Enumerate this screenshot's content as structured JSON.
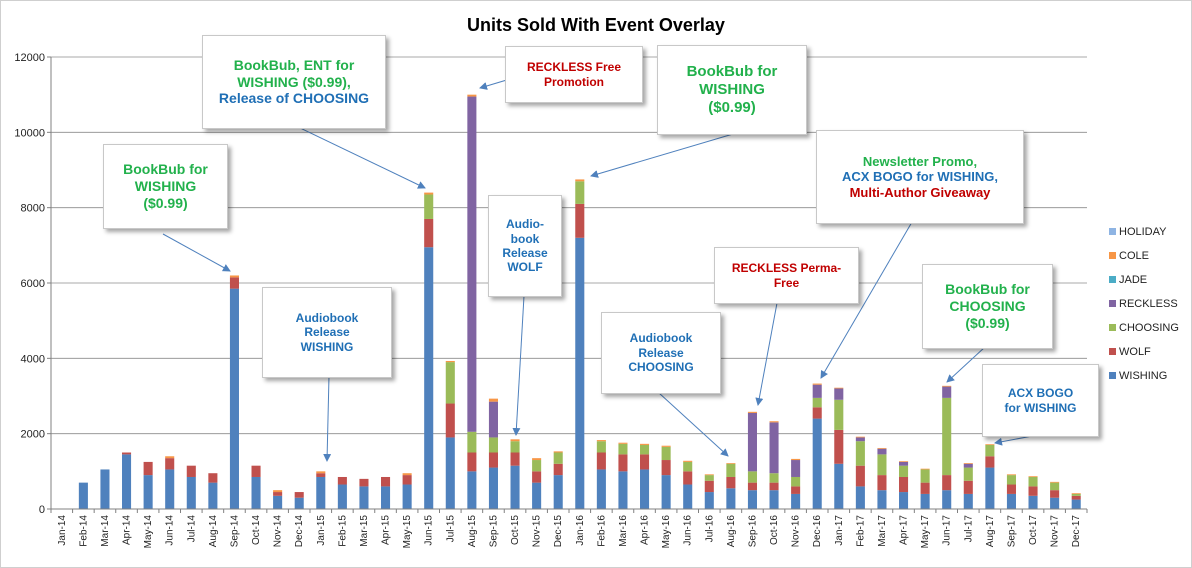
{
  "chart_data": {
    "type": "bar",
    "stacked": true,
    "title": "Units Sold With Event Overlay",
    "ylim": [
      0,
      12000
    ],
    "yticks": [
      0,
      2000,
      4000,
      6000,
      8000,
      10000,
      12000
    ],
    "grid": true,
    "legend_position": "right",
    "categories": [
      "Jan-14",
      "Feb-14",
      "Mar-14",
      "Apr-14",
      "May-14",
      "Jun-14",
      "Jul-14",
      "Aug-14",
      "Sep-14",
      "Oct-14",
      "Nov-14",
      "Dec-14",
      "Jan-15",
      "Feb-15",
      "Mar-15",
      "Apr-15",
      "May-15",
      "Jun-15",
      "Jul-15",
      "Aug-15",
      "Sep-15",
      "Oct-15",
      "Nov-15",
      "Dec-15",
      "Jan-16",
      "Feb-16",
      "Mar-16",
      "Apr-16",
      "May-16",
      "Jun-16",
      "Jul-16",
      "Aug-16",
      "Sep-16",
      "Oct-16",
      "Nov-16",
      "Dec-16",
      "Jan-17",
      "Feb-17",
      "Mar-17",
      "Apr-17",
      "May-17",
      "Jun-17",
      "Jul-17",
      "Aug-17",
      "Sep-17",
      "Oct-17",
      "Nov-17",
      "Dec-17"
    ],
    "series": [
      {
        "name": "WISHING",
        "color": "#4f81bd",
        "values": [
          0,
          700,
          1050,
          1450,
          900,
          1050,
          850,
          700,
          5850,
          850,
          350,
          300,
          850,
          650,
          600,
          600,
          650,
          6950,
          1900,
          1000,
          1100,
          1150,
          700,
          900,
          7200,
          1050,
          1000,
          1050,
          900,
          650,
          450,
          550,
          500,
          500,
          400,
          2400,
          1200,
          600,
          500,
          450,
          400,
          500,
          400,
          1100,
          400,
          350,
          300,
          250
        ]
      },
      {
        "name": "WOLF",
        "color": "#c0504d",
        "values": [
          0,
          0,
          0,
          50,
          350,
          300,
          300,
          250,
          300,
          300,
          100,
          150,
          100,
          200,
          200,
          250,
          250,
          750,
          900,
          500,
          400,
          350,
          300,
          300,
          900,
          450,
          450,
          400,
          400,
          350,
          300,
          300,
          200,
          200,
          200,
          300,
          900,
          550,
          400,
          400,
          300,
          400,
          350,
          300,
          250,
          250,
          200,
          100
        ]
      },
      {
        "name": "CHOOSING",
        "color": "#9bbb59",
        "values": [
          0,
          0,
          0,
          0,
          0,
          0,
          0,
          0,
          0,
          0,
          0,
          0,
          0,
          0,
          0,
          0,
          0,
          650,
          1100,
          550,
          400,
          300,
          300,
          300,
          600,
          300,
          280,
          250,
          350,
          250,
          150,
          350,
          300,
          250,
          250,
          250,
          800,
          650,
          550,
          300,
          350,
          2050,
          350,
          300,
          250,
          250,
          200,
          50
        ]
      },
      {
        "name": "RECKLESS",
        "color": "#8064a2",
        "values": [
          0,
          0,
          0,
          0,
          0,
          0,
          0,
          0,
          0,
          0,
          0,
          0,
          0,
          0,
          0,
          0,
          0,
          0,
          0,
          8900,
          950,
          0,
          0,
          0,
          0,
          0,
          0,
          0,
          0,
          0,
          0,
          0,
          1550,
          1350,
          450,
          350,
          300,
          100,
          150,
          100,
          0,
          300,
          100,
          0,
          0,
          0,
          0,
          0
        ]
      },
      {
        "name": "JADE",
        "color": "#4bacc6",
        "values": [
          0,
          0,
          0,
          0,
          0,
          0,
          0,
          0,
          0,
          0,
          0,
          0,
          0,
          0,
          0,
          0,
          0,
          0,
          0,
          0,
          0,
          0,
          0,
          0,
          0,
          0,
          0,
          0,
          0,
          0,
          0,
          0,
          0,
          0,
          0,
          0,
          0,
          0,
          0,
          0,
          0,
          0,
          0,
          0,
          0,
          0,
          0,
          0
        ]
      },
      {
        "name": "COLE",
        "color": "#f79646",
        "values": [
          0,
          0,
          0,
          0,
          0,
          50,
          0,
          0,
          50,
          0,
          50,
          0,
          50,
          0,
          0,
          0,
          50,
          50,
          30,
          50,
          80,
          50,
          50,
          30,
          50,
          30,
          30,
          30,
          30,
          30,
          20,
          20,
          30,
          30,
          30,
          30,
          20,
          20,
          20,
          20,
          20,
          20,
          20,
          20,
          20,
          20,
          20,
          20
        ]
      },
      {
        "name": "HOLIDAY",
        "color": "#8eb4e3",
        "values": [
          0,
          0,
          0,
          0,
          0,
          0,
          0,
          0,
          0,
          0,
          0,
          0,
          0,
          0,
          0,
          0,
          0,
          0,
          0,
          0,
          0,
          0,
          0,
          0,
          0,
          0,
          0,
          0,
          0,
          0,
          0,
          0,
          0,
          0,
          0,
          0,
          0,
          0,
          0,
          0,
          0,
          0,
          0,
          0,
          0,
          0,
          0,
          0
        ]
      }
    ],
    "annotations": [
      {
        "key": "a1",
        "lines": [
          {
            "text": "BookBub for",
            "color": "#22b14c"
          },
          {
            "text": "WISHING",
            "color": "#22b14c"
          },
          {
            "text": "($0.99)",
            "color": "#22b14c"
          }
        ],
        "target": "Sep-14"
      },
      {
        "key": "a2",
        "lines": [
          {
            "text": "BookBub, ENT for",
            "color": "#22b14c"
          },
          {
            "text": "WISHING ($0.99),",
            "color": "#22b14c"
          },
          {
            "text": "Release of CHOOSING",
            "color": "#1f6fb5"
          }
        ],
        "target": "Jun-15"
      },
      {
        "key": "a3",
        "lines": [
          {
            "text": "RECKLESS Free",
            "color": "#c00000"
          },
          {
            "text": "Promotion",
            "color": "#c00000"
          }
        ],
        "target": "Aug-15"
      },
      {
        "key": "a4",
        "lines": [
          {
            "text": "BookBub for",
            "color": "#22b14c"
          },
          {
            "text": "WISHING",
            "color": "#22b14c"
          },
          {
            "text": "($0.99)",
            "color": "#22b14c"
          }
        ],
        "target": "Jan-16"
      },
      {
        "key": "a5",
        "lines": [
          {
            "text": "Newsletter Promo,",
            "color": "#22b14c"
          },
          {
            "text": "ACX BOGO for WISHING,",
            "color": "#1f6fb5"
          },
          {
            "text": "Multi-Author Giveaway",
            "color": "#c00000"
          }
        ],
        "target": "Dec-16"
      },
      {
        "key": "a6",
        "lines": [
          {
            "text": "Audio-",
            "color": "#1f6fb5"
          },
          {
            "text": "book",
            "color": "#1f6fb5"
          },
          {
            "text": "Release",
            "color": "#1f6fb5"
          },
          {
            "text": "WOLF",
            "color": "#1f6fb5"
          }
        ],
        "target": "Oct-15"
      },
      {
        "key": "a7",
        "lines": [
          {
            "text": "Audiobook",
            "color": "#1f6fb5"
          },
          {
            "text": "Release",
            "color": "#1f6fb5"
          },
          {
            "text": "WISHING",
            "color": "#1f6fb5"
          }
        ],
        "target": "Jan-15"
      },
      {
        "key": "a8",
        "lines": [
          {
            "text": "RECKLESS Perma-",
            "color": "#c00000"
          },
          {
            "text": "Free",
            "color": "#c00000"
          }
        ],
        "target": "Sep-16"
      },
      {
        "key": "a9",
        "lines": [
          {
            "text": "Audiobook",
            "color": "#1f6fb5"
          },
          {
            "text": "Release",
            "color": "#1f6fb5"
          },
          {
            "text": "CHOOSING",
            "color": "#1f6fb5"
          }
        ],
        "target": "Aug-16"
      },
      {
        "key": "a10",
        "lines": [
          {
            "text": "BookBub for",
            "color": "#22b14c"
          },
          {
            "text": "CHOOSING",
            "color": "#22b14c"
          },
          {
            "text": "($0.99)",
            "color": "#22b14c"
          }
        ],
        "target": "Jun-17"
      },
      {
        "key": "a11",
        "lines": [
          {
            "text": "ACX BOGO",
            "color": "#1f6fb5"
          },
          {
            "text": "for WISHING",
            "color": "#1f6fb5"
          }
        ],
        "target": "Aug-17"
      }
    ]
  }
}
